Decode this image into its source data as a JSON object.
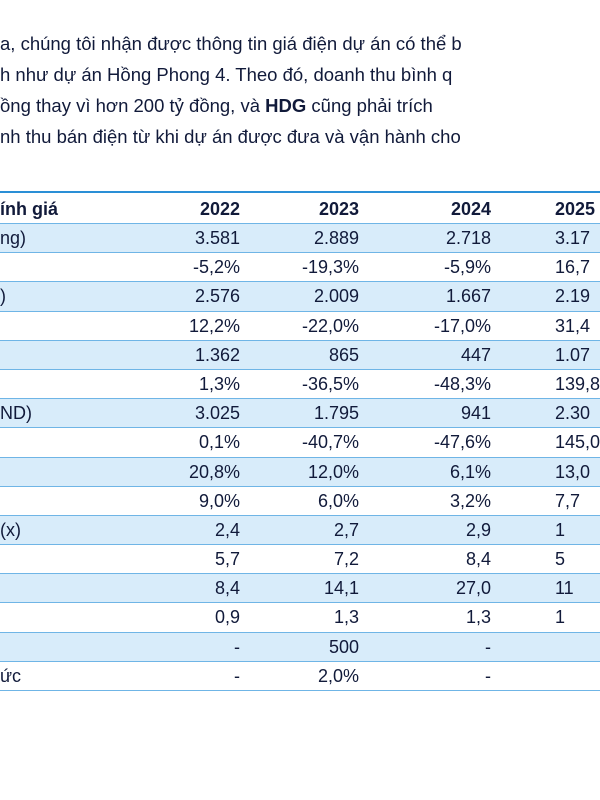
{
  "paragraph": {
    "line1": "a, chúng tôi nhận được thông tin giá điện dự án có thể b",
    "line2": "h như dự án Hồng Phong 4. Theo đó, doanh thu bình q",
    "line3_before": "ồng thay vì hơn 200 tỷ đồng, và ",
    "line3_bold": "HDG",
    "line3_after": " cũng phải trích",
    "line4": "nh thu bán điện từ khi dự án được đưa và vận hành cho"
  },
  "table": {
    "header": {
      "label": "ính giá",
      "c1": "2022",
      "c2": "2023",
      "c3": "2024",
      "c4": "2025"
    },
    "rows": [
      {
        "label": "ng)",
        "c1": "3.581",
        "c2": "2.889",
        "c3": "2.718",
        "c4": "3.17"
      },
      {
        "label": "",
        "c1": "-5,2%",
        "c2": "-19,3%",
        "c3": "-5,9%",
        "c4": "16,7"
      },
      {
        "label": ")",
        "c1": "2.576",
        "c2": "2.009",
        "c3": "1.667",
        "c4": "2.19"
      },
      {
        "label": "",
        "c1": "12,2%",
        "c2": "-22,0%",
        "c3": "-17,0%",
        "c4": "31,4"
      },
      {
        "label": "",
        "c1": "1.362",
        "c2": "865",
        "c3": "447",
        "c4": "1.07"
      },
      {
        "label": "",
        "c1": "1,3%",
        "c2": "-36,5%",
        "c3": "-48,3%",
        "c4": "139,8"
      },
      {
        "label": "ND)",
        "c1": "3.025",
        "c2": "1.795",
        "c3": "941",
        "c4": "2.30"
      },
      {
        "label": "",
        "c1": "0,1%",
        "c2": "-40,7%",
        "c3": "-47,6%",
        "c4": "145,0"
      },
      {
        "label": "",
        "c1": "20,8%",
        "c2": "12,0%",
        "c3": "6,1%",
        "c4": "13,0"
      },
      {
        "label": "",
        "c1": "9,0%",
        "c2": "6,0%",
        "c3": "3,2%",
        "c4": "7,7"
      },
      {
        "label": "(x)",
        "c1": "2,4",
        "c2": "2,7",
        "c3": "2,9",
        "c4": "1"
      },
      {
        "label": "",
        "c1": "5,7",
        "c2": "7,2",
        "c3": "8,4",
        "c4": "5"
      },
      {
        "label": "",
        "c1": "8,4",
        "c2": "14,1",
        "c3": "27,0",
        "c4": "11"
      },
      {
        "label": "",
        "c1": "0,9",
        "c2": "1,3",
        "c3": "1,3",
        "c4": "1"
      },
      {
        "label": "",
        "c1": "-",
        "c2": "500",
        "c3": "-",
        "c4": ""
      },
      {
        "label": "ức",
        "c1": "-",
        "c2": "2,0%",
        "c3": "-",
        "c4": ""
      }
    ]
  }
}
